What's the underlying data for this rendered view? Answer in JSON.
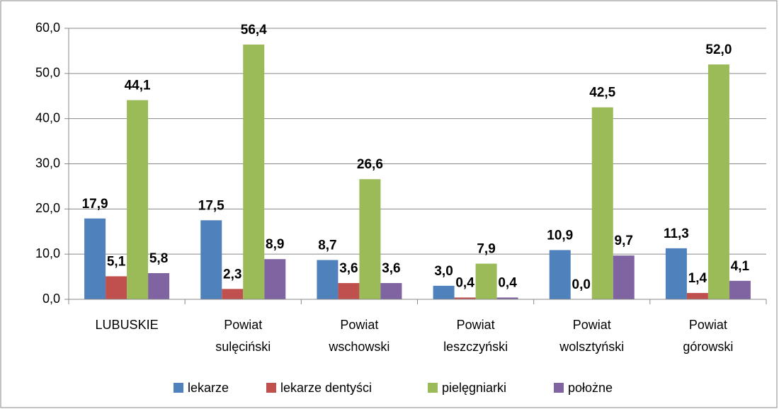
{
  "chart_data": {
    "type": "bar",
    "categories": [
      "LUBUSKIE",
      "Powiat sulęciński",
      "Powiat wschowski",
      "Powiat leszczyński",
      "Powiat wolsztyński",
      "Powiat górowski"
    ],
    "series": [
      {
        "name": "lekarze",
        "color": "#4f81bd",
        "values": [
          17.9,
          17.5,
          8.7,
          3.0,
          10.9,
          11.3
        ],
        "value_labels": [
          "17,9",
          "17,5",
          "8,7",
          "3,0",
          "10,9",
          "11,3"
        ]
      },
      {
        "name": "lekarze dentyści",
        "color": "#c0504d",
        "values": [
          5.1,
          2.3,
          3.6,
          0.4,
          0.0,
          1.4
        ],
        "value_labels": [
          "5,1",
          "2,3",
          "3,6",
          "0,4",
          "0,0",
          "1,4"
        ]
      },
      {
        "name": "pielęgniarki",
        "color": "#9bbb59",
        "values": [
          44.1,
          56.4,
          26.6,
          7.9,
          42.5,
          52.0
        ],
        "value_labels": [
          "44,1",
          "56,4",
          "26,6",
          "7,9",
          "42,5",
          "52,0"
        ]
      },
      {
        "name": "położne",
        "color": "#8064a2",
        "values": [
          5.8,
          8.9,
          3.6,
          0.4,
          9.7,
          4.1
        ],
        "value_labels": [
          "5,8",
          "8,9",
          "3,6",
          "0,4",
          "9,7",
          "4,1"
        ]
      }
    ],
    "ylim": [
      0,
      60
    ],
    "yticks": [
      {
        "value": 0,
        "label": "0,0"
      },
      {
        "value": 10,
        "label": "10,0"
      },
      {
        "value": 20,
        "label": "20,0"
      },
      {
        "value": 30,
        "label": "30,0"
      },
      {
        "value": 40,
        "label": "40,0"
      },
      {
        "value": 50,
        "label": "50,0"
      },
      {
        "value": 60,
        "label": "60,0"
      }
    ],
    "grid": true,
    "legend": "bottom"
  }
}
